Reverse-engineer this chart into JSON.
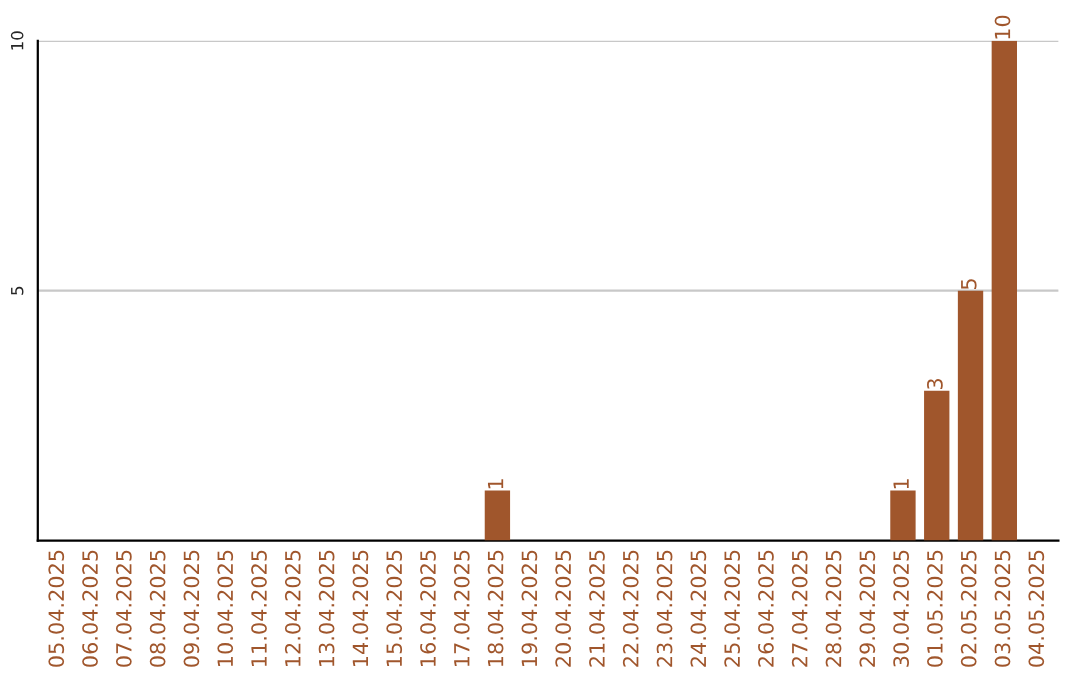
{
  "chart_data": {
    "type": "bar",
    "categories": [
      "05.04.2025",
      "06.04.2025",
      "07.04.2025",
      "08.04.2025",
      "09.04.2025",
      "10.04.2025",
      "11.04.2025",
      "12.04.2025",
      "13.04.2025",
      "14.04.2025",
      "15.04.2025",
      "16.04.2025",
      "17.04.2025",
      "18.04.2025",
      "19.04.2025",
      "20.04.2025",
      "21.04.2025",
      "22.04.2025",
      "23.04.2025",
      "24.04.2025",
      "25.04.2025",
      "26.04.2025",
      "27.04.2025",
      "28.04.2025",
      "29.04.2025",
      "30.04.2025",
      "01.05.2025",
      "02.05.2025",
      "03.05.2025",
      "04.05.2025"
    ],
    "values": [
      null,
      null,
      null,
      null,
      null,
      null,
      null,
      null,
      null,
      null,
      null,
      null,
      null,
      1,
      null,
      null,
      null,
      null,
      null,
      null,
      null,
      null,
      null,
      null,
      null,
      1,
      3,
      5,
      10,
      null
    ],
    "value_labels": [
      null,
      null,
      null,
      null,
      null,
      null,
      null,
      null,
      null,
      null,
      null,
      null,
      null,
      "1",
      null,
      null,
      null,
      null,
      null,
      null,
      null,
      null,
      null,
      null,
      null,
      "1",
      "3",
      "5",
      "10",
      null
    ],
    "color": "#a0562c",
    "ylim": [
      0,
      10
    ],
    "yticks": [
      5,
      10
    ],
    "grid": "y"
  }
}
